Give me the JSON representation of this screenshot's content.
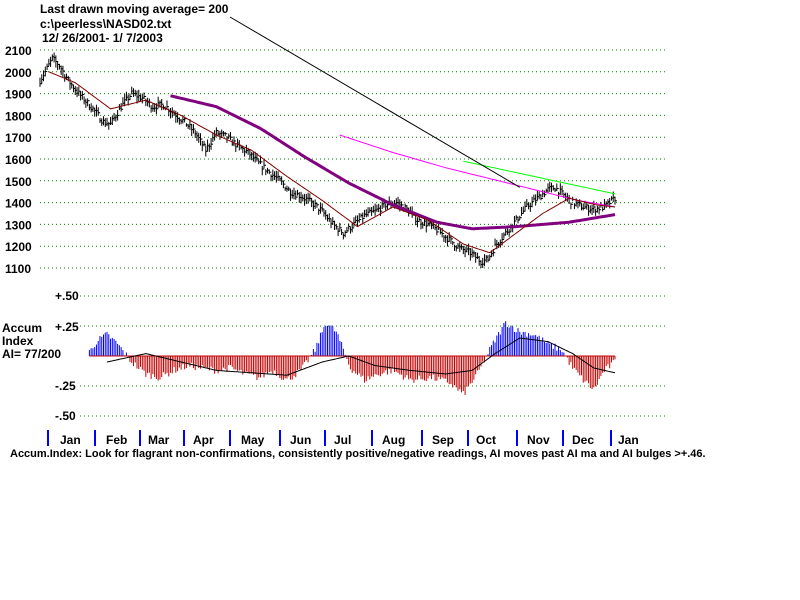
{
  "header": {
    "line1": "Last drawn moving average= 200",
    "line2": "c:\\peerless\\NASD02.txt",
    "line3": "12/ 26/2001- 1/ 7/2003"
  },
  "indicator": {
    "label1": "Accum",
    "label2": "Index",
    "label3": "AI= 77/200"
  },
  "footnote": "Accum.Index: Look for flagrant non-confirmations, consistently positive/negative readings, AI moves past AI ma and AI bulges >+.46.",
  "colors": {
    "grid": "#008000",
    "price": "#000000",
    "ma_short": "#800000",
    "ma_mid": "#800080",
    "ma_200": "#ff00ff",
    "trend_green": "#00ff00",
    "trend_black": "#000000",
    "ai_positive": "#0000ff",
    "ai_negative": "#c00000",
    "month_tick": "#0000ff"
  },
  "chart_data": [
    {
      "type": "line",
      "name": "price",
      "y_ticks": [
        "2100",
        "2000",
        "1900",
        "1800",
        "1700",
        "1600",
        "1500",
        "1400",
        "1300",
        "1200",
        "1100"
      ],
      "ylim": [
        1100,
        2100
      ],
      "x_months": [
        "Jan",
        "Feb",
        "Mar",
        "Apr",
        "May",
        "Jun",
        "Jul",
        "Aug",
        "Sep",
        "Oct",
        "Nov",
        "Dec",
        "Jan"
      ],
      "grid": true,
      "price_anchors": [
        [
          0,
          1960
        ],
        [
          3,
          2000
        ],
        [
          7,
          2060
        ],
        [
          11,
          2030
        ],
        [
          16,
          1960
        ],
        [
          22,
          1900
        ],
        [
          30,
          1830
        ],
        [
          36,
          1770
        ],
        [
          40,
          1760
        ],
        [
          46,
          1840
        ],
        [
          52,
          1900
        ],
        [
          58,
          1880
        ],
        [
          64,
          1840
        ],
        [
          70,
          1850
        ],
        [
          76,
          1810
        ],
        [
          82,
          1770
        ],
        [
          88,
          1720
        ],
        [
          94,
          1640
        ],
        [
          100,
          1720
        ],
        [
          106,
          1700
        ],
        [
          112,
          1660
        ],
        [
          118,
          1630
        ],
        [
          124,
          1580
        ],
        [
          130,
          1540
        ],
        [
          136,
          1500
        ],
        [
          142,
          1450
        ],
        [
          148,
          1430
        ],
        [
          154,
          1400
        ],
        [
          160,
          1360
        ],
        [
          166,
          1300
        ],
        [
          172,
          1260
        ],
        [
          178,
          1300
        ],
        [
          184,
          1340
        ],
        [
          190,
          1360
        ],
        [
          196,
          1390
        ],
        [
          202,
          1400
        ],
        [
          208,
          1370
        ],
        [
          214,
          1320
        ],
        [
          220,
          1300
        ],
        [
          226,
          1270
        ],
        [
          232,
          1230
        ],
        [
          238,
          1190
        ],
        [
          244,
          1170
        ],
        [
          250,
          1130
        ],
        [
          254,
          1140
        ],
        [
          258,
          1200
        ],
        [
          264,
          1260
        ],
        [
          270,
          1320
        ],
        [
          276,
          1380
        ],
        [
          282,
          1420
        ],
        [
          288,
          1460
        ],
        [
          292,
          1470
        ],
        [
          296,
          1440
        ],
        [
          302,
          1400
        ],
        [
          308,
          1380
        ],
        [
          314,
          1370
        ],
        [
          320,
          1380
        ],
        [
          326,
          1420
        ]
      ],
      "ma_short_anchors": [
        [
          5,
          2000
        ],
        [
          20,
          1950
        ],
        [
          40,
          1830
        ],
        [
          60,
          1870
        ],
        [
          80,
          1800
        ],
        [
          100,
          1710
        ],
        [
          120,
          1640
        ],
        [
          140,
          1520
        ],
        [
          160,
          1410
        ],
        [
          180,
          1290
        ],
        [
          200,
          1380
        ],
        [
          220,
          1320
        ],
        [
          240,
          1210
        ],
        [
          255,
          1170
        ],
        [
          265,
          1230
        ],
        [
          285,
          1350
        ],
        [
          300,
          1420
        ],
        [
          315,
          1390
        ],
        [
          326,
          1380
        ]
      ],
      "ma_mid_anchors": [
        [
          74,
          1890
        ],
        [
          100,
          1840
        ],
        [
          125,
          1740
        ],
        [
          150,
          1610
        ],
        [
          175,
          1490
        ],
        [
          200,
          1390
        ],
        [
          225,
          1310
        ],
        [
          245,
          1280
        ],
        [
          270,
          1290
        ],
        [
          300,
          1310
        ],
        [
          326,
          1345
        ]
      ],
      "ma_200_anchors": [
        [
          170,
          1710
        ],
        [
          200,
          1630
        ],
        [
          230,
          1560
        ],
        [
          255,
          1510
        ],
        [
          280,
          1460
        ],
        [
          305,
          1410
        ],
        [
          326,
          1380
        ]
      ],
      "trend_green_anchors": [
        [
          240,
          1590
        ],
        [
          326,
          1440
        ]
      ],
      "trend_black_anchors": [
        [
          85,
          2220
        ],
        [
          272,
          1470
        ]
      ],
      "n_days": 327
    },
    {
      "type": "bar",
      "name": "accum-index",
      "y_ticks": [
        "+.50",
        "+.25",
        "-.25",
        "-.50"
      ],
      "ylim": [
        -0.55,
        0.55
      ],
      "ai_anchors": [
        [
          0,
          -0.08
        ],
        [
          8,
          -0.2
        ],
        [
          16,
          -0.1
        ],
        [
          24,
          -0.05
        ],
        [
          32,
          0.12
        ],
        [
          38,
          0.18
        ],
        [
          44,
          0.1
        ],
        [
          52,
          -0.05
        ],
        [
          60,
          -0.15
        ],
        [
          68,
          -0.18
        ],
        [
          76,
          -0.12
        ],
        [
          84,
          -0.08
        ],
        [
          92,
          -0.1
        ],
        [
          100,
          -0.12
        ],
        [
          108,
          -0.1
        ],
        [
          116,
          -0.15
        ],
        [
          124,
          -0.18
        ],
        [
          132,
          -0.12
        ],
        [
          140,
          -0.2
        ],
        [
          148,
          -0.12
        ],
        [
          156,
          0.05
        ],
        [
          162,
          0.28
        ],
        [
          168,
          0.2
        ],
        [
          176,
          -0.1
        ],
        [
          184,
          -0.2
        ],
        [
          192,
          -0.15
        ],
        [
          200,
          -0.12
        ],
        [
          210,
          -0.2
        ],
        [
          222,
          -0.18
        ],
        [
          232,
          -0.22
        ],
        [
          240,
          -0.32
        ],
        [
          248,
          -0.15
        ],
        [
          256,
          0.08
        ],
        [
          264,
          0.28
        ],
        [
          272,
          0.2
        ],
        [
          280,
          0.18
        ],
        [
          288,
          0.1
        ],
        [
          296,
          0.05
        ],
        [
          302,
          -0.1
        ],
        [
          308,
          -0.2
        ],
        [
          314,
          -0.28
        ],
        [
          320,
          -0.12
        ],
        [
          326,
          -0.05
        ]
      ],
      "ai_ma_anchors": [
        [
          38,
          -0.05
        ],
        [
          60,
          0.02
        ],
        [
          80,
          -0.05
        ],
        [
          100,
          -0.12
        ],
        [
          120,
          -0.14
        ],
        [
          140,
          -0.16
        ],
        [
          160,
          -0.05
        ],
        [
          175,
          0.0
        ],
        [
          190,
          -0.08
        ],
        [
          210,
          -0.12
        ],
        [
          230,
          -0.15
        ],
        [
          245,
          -0.12
        ],
        [
          258,
          0.02
        ],
        [
          272,
          0.15
        ],
        [
          288,
          0.12
        ],
        [
          302,
          0.02
        ],
        [
          314,
          -0.1
        ],
        [
          326,
          -0.14
        ]
      ]
    }
  ]
}
